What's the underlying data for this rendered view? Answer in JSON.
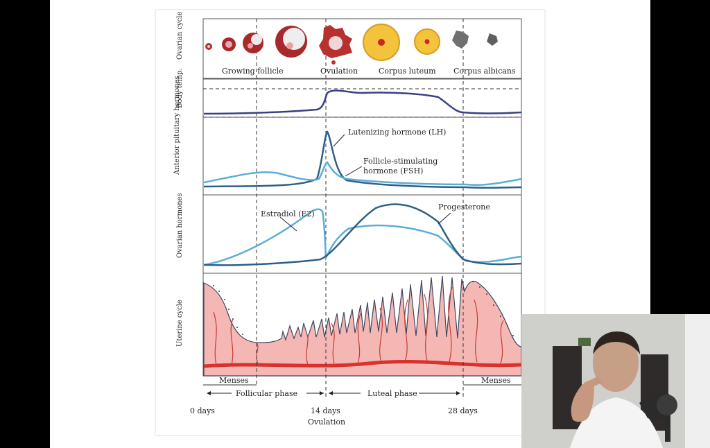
{
  "figure": {
    "rows": {
      "ovarian_cycle": "Ovarian cycle",
      "body_temp": "Body temp.",
      "anterior_pituitary": "Anterior pituitary hormones",
      "ovarian_hormones": "Ovarian hormones",
      "uterine_cycle": "Uterine cycle"
    },
    "stages": {
      "growing_follicle": "Growing follicle",
      "ovulation": "Ovulation",
      "corpus_luteum": "Corpus luteum",
      "corpus_albicans": "Corpus albicans"
    },
    "curve_labels": {
      "lh": "Lutenizing hormone (LH)",
      "fsh_1": "Follicle-stimulating",
      "fsh_2": "hormone (FSH)",
      "estradiol": "Estradiol (E2)",
      "progesterone": "Progesterone"
    },
    "phases": {
      "menses_start": "Menses",
      "menses_end": "Menses",
      "follicular": "Follicular phase",
      "luteal": "Luteal phase"
    },
    "axis": {
      "day_0": "0 days",
      "day_14": "14 days",
      "day_28": "28 days",
      "ovulation": "Ovulation"
    },
    "colors": {
      "lh": "#2e5f86",
      "fsh": "#5aaed6",
      "temp": "#3b3f86",
      "endometrium": "#f3b3b0",
      "artery": "#d7322c"
    }
  },
  "webcam": {
    "description_icon": "presenter-video-icon"
  }
}
